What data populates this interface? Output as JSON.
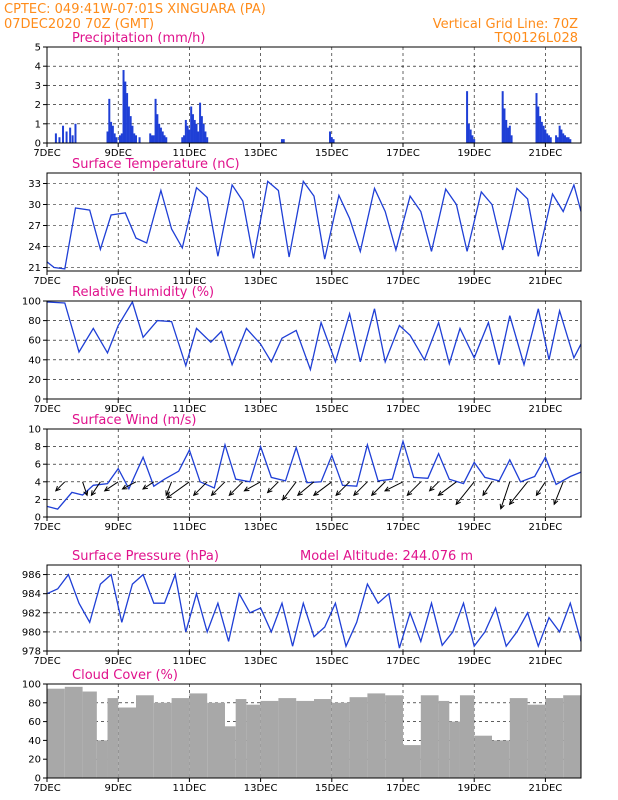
{
  "header": {
    "line1_left": "CPTEC:   049:41W-07:01S   XINGUARA (PA)",
    "line2_left": "07DEC2020 70Z (GMT)",
    "line1_right": "Vertical Grid Line: 70Z",
    "line2_right": "TQ0126L028"
  },
  "colors": {
    "header": "#ff8c1a",
    "title": "#e0128c",
    "series": "#1f3fd6",
    "cloud": "#a8a8a8",
    "arrow": "#000000"
  },
  "x_axis": {
    "tick_labels": [
      "7DEC",
      "9DEC",
      "11DEC",
      "13DEC",
      "15DEC",
      "17DEC",
      "19DEC",
      "21DEC"
    ],
    "tick_days": [
      0,
      2,
      4,
      6,
      8,
      10,
      12,
      14
    ],
    "range_days": [
      0,
      15
    ]
  },
  "chart_data": [
    {
      "type": "bar",
      "title": "Precipitation (mm/h)",
      "ylim": [
        0,
        5
      ],
      "yticks": [
        "0",
        "1",
        "2",
        "3",
        "4",
        "5"
      ],
      "x_days": [
        0.25,
        0.35,
        0.45,
        0.55,
        0.65,
        0.72,
        0.8,
        1.7,
        1.75,
        1.8,
        1.85,
        1.9,
        1.95,
        2.05,
        2.1,
        2.15,
        2.2,
        2.25,
        2.3,
        2.35,
        2.4,
        2.45,
        2.5,
        2.6,
        2.9,
        2.95,
        3.0,
        3.05,
        3.1,
        3.15,
        3.2,
        3.25,
        3.3,
        3.35,
        3.8,
        3.85,
        3.9,
        3.95,
        4.0,
        4.05,
        4.1,
        4.15,
        4.2,
        4.25,
        4.3,
        4.35,
        4.4,
        4.45,
        4.5,
        6.6,
        6.65,
        7.95,
        8.0,
        8.05,
        11.8,
        11.85,
        11.9,
        11.95,
        12.0,
        12.8,
        12.85,
        12.9,
        12.95,
        13.0,
        13.05,
        13.75,
        13.8,
        13.85,
        13.9,
        13.95,
        14.0,
        14.05,
        14.1,
        14.15,
        14.3,
        14.35,
        14.4,
        14.45,
        14.5,
        14.55,
        14.6,
        14.65,
        14.7
      ],
      "values": [
        0.5,
        0.3,
        0.9,
        0.6,
        0.8,
        0.4,
        1.0,
        0.6,
        2.3,
        1.1,
        0.9,
        0.5,
        0.3,
        0.4,
        0.5,
        3.8,
        3.2,
        2.6,
        1.9,
        1.4,
        0.9,
        0.5,
        0.4,
        0.3,
        0.5,
        0.4,
        0.4,
        2.3,
        1.5,
        1.0,
        0.8,
        0.6,
        0.4,
        0.3,
        0.3,
        0.4,
        1.2,
        0.9,
        0.7,
        1.9,
        1.5,
        1.2,
        1.0,
        0.6,
        2.1,
        1.4,
        1.0,
        0.6,
        0.3,
        0.2,
        0.2,
        0.6,
        0.3,
        0.2,
        2.7,
        1.0,
        0.7,
        0.4,
        0.2,
        2.7,
        1.8,
        1.2,
        0.8,
        0.9,
        0.4,
        2.6,
        1.9,
        1.4,
        1.1,
        0.9,
        0.7,
        0.5,
        0.4,
        0.3,
        0.4,
        0.3,
        0.9,
        0.7,
        0.5,
        0.4,
        0.3,
        0.3,
        0.2
      ]
    },
    {
      "type": "line",
      "title": "Surface Temperature (nC)",
      "ylim": [
        20.5,
        34.5
      ],
      "yticks": [
        "21",
        "24",
        "27",
        "30",
        "33"
      ],
      "x_days": [
        0,
        0.2,
        0.5,
        0.8,
        1.2,
        1.5,
        1.8,
        2.2,
        2.5,
        2.8,
        3.2,
        3.5,
        3.8,
        4.2,
        4.5,
        4.8,
        5.2,
        5.5,
        5.8,
        6.2,
        6.5,
        6.8,
        7.2,
        7.5,
        7.8,
        8.2,
        8.5,
        8.8,
        9.2,
        9.5,
        9.8,
        10.2,
        10.5,
        10.8,
        11.2,
        11.5,
        11.8,
        12.2,
        12.5,
        12.8,
        13.2,
        13.5,
        13.8,
        14.2,
        14.5,
        14.8,
        15
      ],
      "values": [
        21.8,
        21.0,
        20.8,
        29.5,
        29.2,
        23.6,
        28.5,
        28.8,
        25.2,
        24.5,
        32.0,
        26.5,
        23.8,
        32.4,
        31.0,
        22.6,
        32.8,
        30.5,
        22.3,
        33.3,
        32.0,
        22.5,
        33.3,
        31.2,
        22.2,
        31.3,
        28.0,
        23.3,
        32.3,
        29.0,
        23.5,
        31.2,
        29.0,
        23.3,
        32.2,
        30.0,
        23.3,
        31.8,
        30.0,
        23.5,
        32.3,
        30.8,
        22.6,
        31.5,
        29.0,
        32.8,
        29.0
      ]
    },
    {
      "type": "line",
      "title": "Relative Humidity (%)",
      "ylim": [
        0,
        100
      ],
      "yticks": [
        "0",
        "20",
        "40",
        "60",
        "80",
        "100"
      ],
      "x_days": [
        0,
        0.5,
        0.9,
        1.3,
        1.7,
        2.0,
        2.4,
        2.7,
        3.1,
        3.5,
        3.9,
        4.2,
        4.6,
        4.9,
        5.2,
        5.6,
        6.0,
        6.3,
        6.6,
        7.0,
        7.4,
        7.7,
        8.1,
        8.5,
        8.8,
        9.2,
        9.5,
        9.9,
        10.2,
        10.6,
        11.0,
        11.3,
        11.6,
        12.0,
        12.4,
        12.7,
        13.0,
        13.4,
        13.8,
        14.1,
        14.4,
        14.8,
        15
      ],
      "values": [
        99,
        98,
        48,
        72,
        47,
        75,
        99,
        63,
        80,
        79,
        34,
        72,
        58,
        69,
        35,
        72,
        56,
        38,
        62,
        70,
        30,
        78,
        38,
        87,
        38,
        92,
        38,
        75,
        65,
        40,
        78,
        36,
        72,
        42,
        78,
        35,
        85,
        35,
        92,
        40,
        90,
        42,
        56
      ]
    },
    {
      "type": "line",
      "title": "Surface Wind (m/s)",
      "ylim": [
        0,
        10
      ],
      "yticks": [
        "0",
        "2",
        "4",
        "6",
        "8",
        "10"
      ],
      "x_days": [
        0,
        0.3,
        0.7,
        1.0,
        1.3,
        1.7,
        2.0,
        2.3,
        2.7,
        3.0,
        3.3,
        3.7,
        4.0,
        4.3,
        4.7,
        5.0,
        5.3,
        5.7,
        6.0,
        6.3,
        6.7,
        7.0,
        7.3,
        7.7,
        8.0,
        8.3,
        8.7,
        9.0,
        9.3,
        9.7,
        10.0,
        10.3,
        10.7,
        11.0,
        11.3,
        11.7,
        12.0,
        12.3,
        12.7,
        13.0,
        13.3,
        13.7,
        14.0,
        14.3,
        14.7,
        15
      ],
      "values": [
        1.2,
        0.9,
        2.8,
        2.5,
        3.6,
        3.8,
        5.5,
        3.2,
        6.8,
        3.5,
        4.3,
        5.2,
        7.6,
        4.0,
        3.3,
        8.2,
        4.3,
        4.0,
        8.0,
        4.5,
        4.1,
        7.9,
        3.9,
        4.0,
        7.0,
        3.6,
        3.5,
        8.2,
        4.1,
        4.3,
        8.6,
        4.5,
        4.4,
        7.2,
        4.3,
        3.8,
        6.2,
        4.5,
        4.1,
        6.5,
        4.0,
        4.6,
        6.8,
        3.7,
        4.6,
        5.1
      ],
      "arrows": {
        "x_days": [
          0.5,
          1.0,
          1.5,
          2.0,
          2.5,
          3.0,
          3.5,
          4.0,
          4.5,
          5.0,
          5.5,
          6.0,
          6.5,
          7.0,
          7.5,
          8.0,
          8.5,
          9.0,
          9.5,
          10.0,
          10.5,
          11.0,
          11.5,
          12.0,
          12.5,
          13.0,
          13.5,
          14.0,
          14.5
        ],
        "u": [
          -1,
          0.5,
          -1,
          -1.5,
          -1.5,
          -1.2,
          -0.6,
          -2.5,
          -1.5,
          -1.5,
          -1.5,
          -1.8,
          -1.2,
          -1.5,
          -1.8,
          -2,
          -1.5,
          -1.5,
          -1.5,
          -2,
          -1.5,
          -1,
          -2,
          -2,
          -1,
          -1,
          -2,
          -1,
          -1
        ],
        "v": [
          -1,
          -1.5,
          -1.5,
          -1.0,
          -0.8,
          -0.8,
          -1.5,
          -1.8,
          -1.5,
          -1.5,
          -1.5,
          -1.0,
          -1.2,
          -2,
          -1.5,
          -1.5,
          -1.5,
          -1.5,
          -1.5,
          -1,
          -1.5,
          -1,
          -1.5,
          -2.5,
          -1.5,
          -3,
          -2.5,
          -1.5,
          -2.5
        ]
      }
    },
    {
      "type": "line",
      "title": "Surface Pressure (hPa)",
      "subtitle": "Model Altitude: 244.076 m",
      "ylim": [
        978,
        987
      ],
      "yticks": [
        "978",
        "980",
        "982",
        "984",
        "986"
      ],
      "x_days": [
        0,
        0.3,
        0.6,
        0.9,
        1.2,
        1.5,
        1.8,
        2.1,
        2.4,
        2.7,
        3.0,
        3.3,
        3.6,
        3.9,
        4.2,
        4.5,
        4.8,
        5.1,
        5.4,
        5.7,
        6.0,
        6.3,
        6.6,
        6.9,
        7.2,
        7.5,
        7.8,
        8.1,
        8.4,
        8.7,
        9.0,
        9.3,
        9.6,
        9.9,
        10.2,
        10.5,
        10.8,
        11.1,
        11.4,
        11.7,
        12.0,
        12.3,
        12.6,
        12.9,
        13.2,
        13.5,
        13.8,
        14.1,
        14.4,
        14.7,
        15
      ],
      "values": [
        984,
        984.5,
        986,
        983,
        981,
        985,
        986,
        981,
        985,
        986,
        983,
        983,
        986,
        980,
        984,
        980,
        983,
        979,
        984,
        982,
        982.5,
        980,
        983,
        978.5,
        983,
        979.5,
        980.5,
        983,
        978.5,
        981,
        985,
        983,
        984,
        978.3,
        982,
        979,
        983,
        978.6,
        980,
        983,
        978.5,
        980,
        982.5,
        978.5,
        980,
        982,
        978.5,
        981.5,
        980,
        983,
        979
      ]
    },
    {
      "type": "bar",
      "title": "Cloud Cover (%)",
      "ylim": [
        0,
        100
      ],
      "yticks": [
        "0",
        "20",
        "40",
        "60",
        "80",
        "100"
      ],
      "x_days": [
        0,
        0.5,
        1.0,
        1.4,
        1.7,
        2.0,
        2.5,
        3.0,
        3.5,
        4.0,
        4.5,
        5.0,
        5.3,
        5.6,
        6.0,
        6.5,
        7.0,
        7.5,
        8.0,
        8.5,
        9.0,
        9.5,
        10.0,
        10.5,
        11.0,
        11.3,
        11.6,
        12.0,
        12.5,
        13.0,
        13.5,
        14.0,
        14.5
      ],
      "values": [
        95,
        97,
        92,
        40,
        85,
        75,
        88,
        80,
        85,
        90,
        80,
        55,
        84,
        78,
        82,
        85,
        82,
        84,
        80,
        86,
        90,
        88,
        35,
        88,
        82,
        60,
        88,
        45,
        40,
        85,
        78,
        85,
        88
      ]
    }
  ]
}
